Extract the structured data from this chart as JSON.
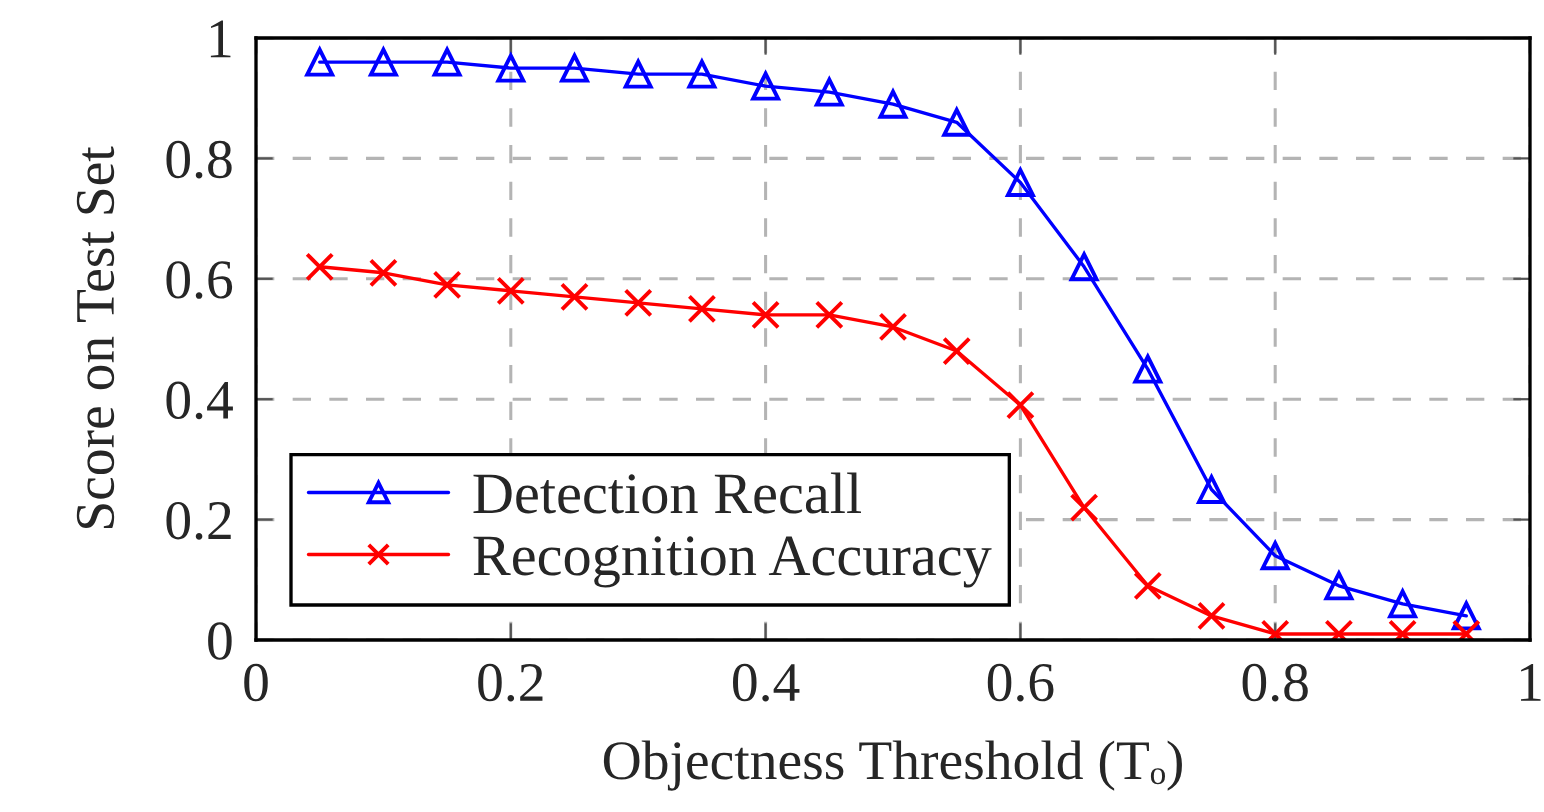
{
  "chart_data": {
    "type": "line",
    "xlabel": "Objectness Threshold (Tₒ)",
    "ylabel": "Score on Test Set",
    "x": [
      0.05,
      0.1,
      0.15,
      0.2,
      0.25,
      0.3,
      0.35,
      0.4,
      0.45,
      0.5,
      0.55,
      0.6,
      0.65,
      0.7,
      0.75,
      0.8,
      0.85,
      0.9,
      0.95
    ],
    "xlim": [
      0,
      1
    ],
    "ylim": [
      0,
      1
    ],
    "xticks": [
      0,
      0.2,
      0.4,
      0.6,
      0.8,
      1
    ],
    "yticks": [
      0,
      0.2,
      0.4,
      0.6,
      0.8,
      1
    ],
    "grid": true,
    "legend": "bottom left",
    "line_style": "solid",
    "series": [
      {
        "name": "Detection Recall",
        "color": "#0000ff",
        "marker": "triangle",
        "values": [
          0.96,
          0.96,
          0.96,
          0.95,
          0.95,
          0.94,
          0.94,
          0.92,
          0.91,
          0.89,
          0.86,
          0.76,
          0.62,
          0.45,
          0.25,
          0.14,
          0.09,
          0.06,
          0.04
        ]
      },
      {
        "name": "Recognition Accuracy",
        "color": "#ff0000",
        "marker": "cross",
        "values": [
          0.62,
          0.61,
          0.59,
          0.58,
          0.57,
          0.56,
          0.55,
          0.54,
          0.54,
          0.52,
          0.48,
          0.39,
          0.22,
          0.09,
          0.04,
          0.01,
          0.01,
          0.01,
          0.01
        ]
      }
    ]
  }
}
